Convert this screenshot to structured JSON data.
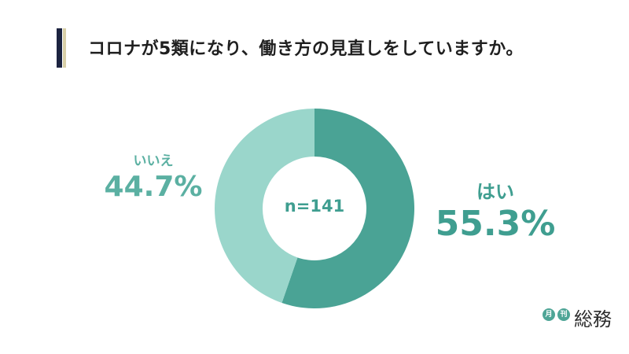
{
  "header": {
    "title": "コロナが5類になり、働き方の見直しをしていますか。"
  },
  "chart_data": {
    "type": "pie",
    "donut": true,
    "title": "コロナが5類になり、働き方の見直しをしていますか。",
    "center_label": "n=141",
    "categories": [
      "はい",
      "いいえ"
    ],
    "values": [
      55.3,
      44.7
    ],
    "labels": [
      "55.3%",
      "44.7%"
    ],
    "colors": [
      "#4aa395",
      "#9ad6cb"
    ],
    "start_angle": "top, clockwise",
    "legend": "none"
  },
  "logo": {
    "small_1": "月",
    "small_2": "刊",
    "main": "総務"
  }
}
